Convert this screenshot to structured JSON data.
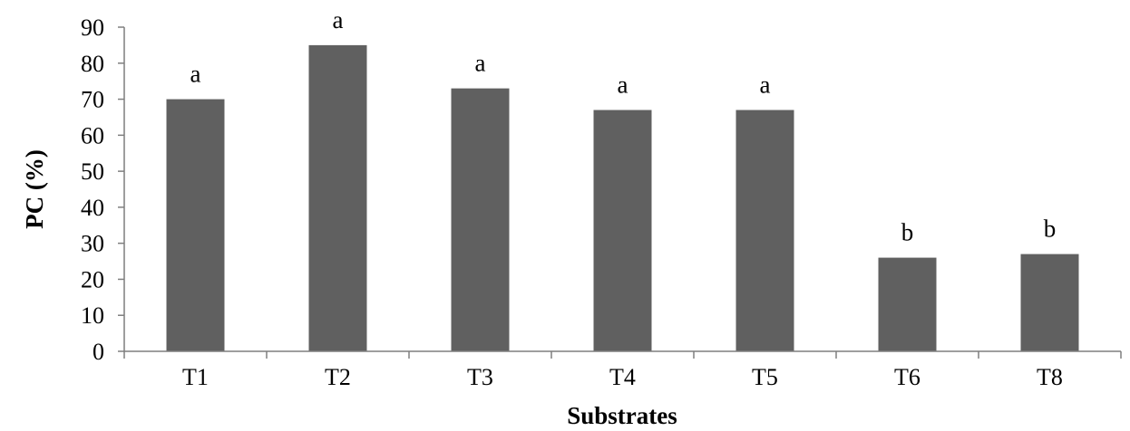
{
  "chart_data": {
    "type": "bar",
    "categories": [
      "T1",
      "T2",
      "T3",
      "T4",
      "T5",
      "T6",
      "T8"
    ],
    "values": [
      70,
      85,
      73,
      67,
      67,
      26,
      27
    ],
    "data_labels": [
      "a",
      "a",
      "a",
      "a",
      "a",
      "b",
      "b"
    ],
    "xlabel": "Substrates",
    "ylabel": "PC (%)",
    "ylim": [
      0,
      90
    ],
    "yticks": [
      0,
      10,
      20,
      30,
      40,
      50,
      60,
      70,
      80,
      90
    ],
    "bar_color": "#606060",
    "grid": false,
    "legend": "none"
  }
}
